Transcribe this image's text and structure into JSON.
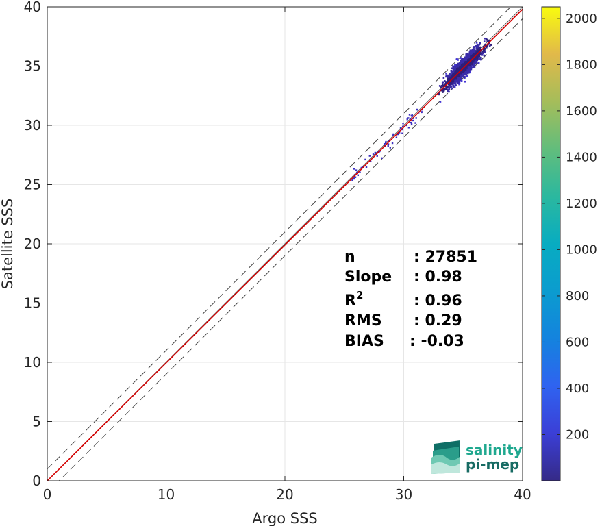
{
  "chart_data": {
    "type": "heatmap",
    "title": "",
    "xlabel": "Argo SSS",
    "ylabel": "Satellite SSS",
    "xlim": [
      0,
      40
    ],
    "ylim": [
      0,
      40
    ],
    "xticks": [
      0,
      10,
      20,
      30,
      40
    ],
    "yticks": [
      0,
      5,
      10,
      15,
      20,
      25,
      30,
      35,
      40
    ],
    "grid": true,
    "reference_lines": [
      {
        "kind": "identity",
        "color": "#555555",
        "style": "solid"
      },
      {
        "kind": "identity+1",
        "color": "#444444",
        "style": "dashed"
      },
      {
        "kind": "identity-1",
        "color": "#444444",
        "style": "dashed"
      },
      {
        "kind": "regression",
        "slope": 0.98,
        "intercept": 0.0,
        "color": "#d40000",
        "style": "solid"
      }
    ],
    "point_cloud": {
      "core_center": [
        35.0,
        35.0
      ],
      "core_x_range": [
        31.5,
        37.5
      ],
      "tail_x_range": [
        25.5,
        31.5
      ],
      "max_density_color": "#3b1f8c"
    },
    "colorbar": {
      "range": [
        0,
        2050
      ],
      "ticks": [
        200,
        400,
        600,
        800,
        1000,
        1200,
        1400,
        1600,
        1800,
        2000
      ],
      "colormap": "parula"
    },
    "stats": [
      {
        "name": "n",
        "sup": "",
        "value": ": 27851"
      },
      {
        "name": "Slope",
        "sup": "",
        "value": ": 0.98"
      },
      {
        "name": "R",
        "sup": "2",
        "value": ": 0.96"
      },
      {
        "name": "RMS",
        "sup": "",
        "value": ": 0.29"
      },
      {
        "name": "BIAS",
        "sup": "",
        "value": ": -0.03"
      }
    ]
  },
  "logo": {
    "line1": "salinity",
    "line2": "pi-mep"
  }
}
